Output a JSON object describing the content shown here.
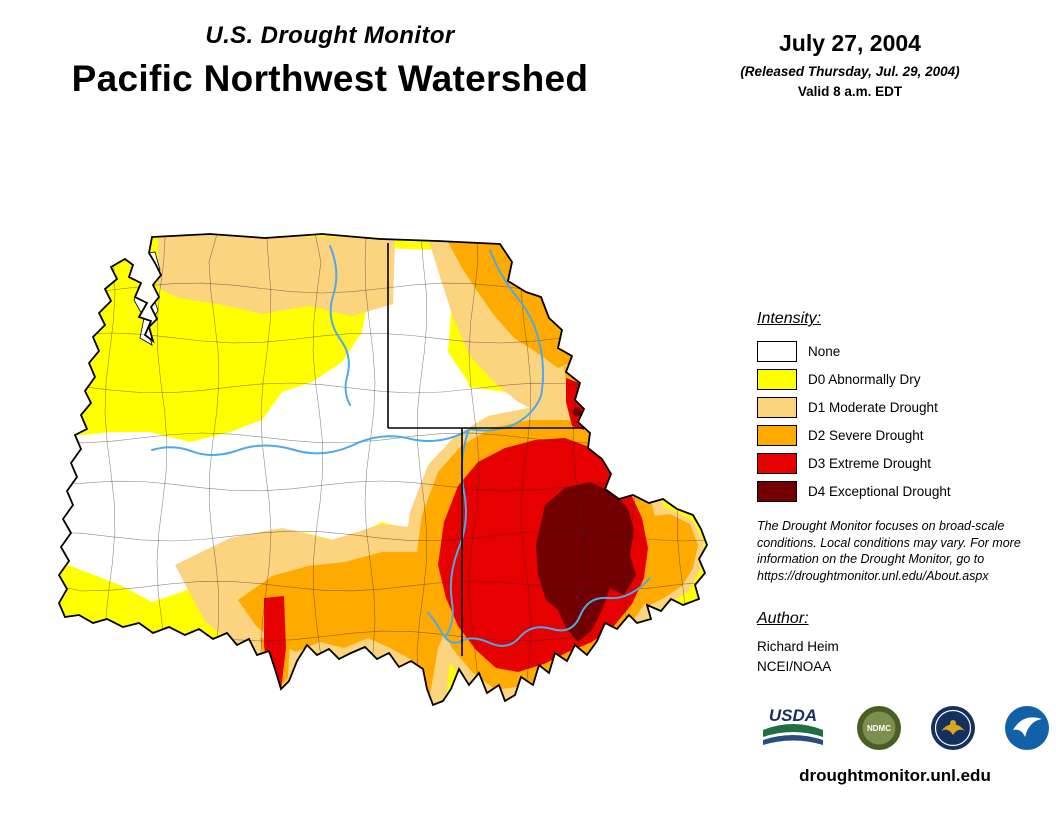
{
  "header": {
    "title": "U.S. Drought Monitor",
    "region": "Pacific Northwest Watershed",
    "date": "July 27, 2004",
    "released": "(Released Thursday, Jul. 29, 2004)",
    "valid": "Valid 8 a.m. EDT"
  },
  "legend": {
    "heading": "Intensity:",
    "items": [
      {
        "label": "None",
        "color": "#FFFFFF"
      },
      {
        "label": "D0 Abnormally Dry",
        "color": "#FFFF00"
      },
      {
        "label": "D1 Moderate Drought",
        "color": "#FCD37F"
      },
      {
        "label": "D2 Severe Drought",
        "color": "#FFAA00"
      },
      {
        "label": "D3 Extreme Drought",
        "color": "#E60000"
      },
      {
        "label": "D4 Exceptional Drought",
        "color": "#730000"
      }
    ]
  },
  "disclaimer": "The Drought Monitor focuses on broad-scale conditions. Local conditions may vary. For more information on the Drought Monitor, go to https://droughtmonitor.unl.edu/About.aspx",
  "author": {
    "heading": "Author:",
    "name": "Richard Heim",
    "org": "NCEI/NOAA"
  },
  "logos": {
    "usda": "USDA",
    "ndmc": "NDMC"
  },
  "map": {
    "river_color": "#4FA8E8"
  },
  "footer": {
    "website": "droughtmonitor.unl.edu"
  }
}
